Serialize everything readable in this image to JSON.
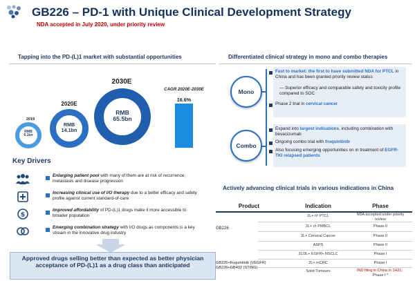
{
  "header": {
    "title": "GB226 – PD-1 with Unique Clinical Development Strategy",
    "subtitle": "NDA accepted in July 2020, under priority review"
  },
  "left": {
    "section_title": "Tapping into the PD-(L)1 market with substantial opportunities",
    "market": {
      "years": [
        "2019",
        "2020E",
        "2030E"
      ],
      "values": [
        "RMB\n6.1bn",
        "RMB\n14.1bn",
        "RMB\n65.5bn"
      ],
      "cagr_label": "CAGR 2020E-2030E",
      "cagr_value": "16.6%"
    },
    "key_drivers_title": "Key Drivers",
    "drivers": [
      {
        "bold": "Enlarging patient pool",
        "rest": " with many of them are at risk of recurrence, metastasis and disease progression"
      },
      {
        "bold": "Increasing clinical use of I/O therapy",
        "rest": " due to a better efficacy and safety profile against current standard-of-care"
      },
      {
        "bold": "Improved affordability",
        "rest": " of PD-(L)1 drugs make it more accessible to broader population"
      },
      {
        "bold": "Emerging combination strategy",
        "rest": " with I/O drugs as components is a key stream in the innovative drug industry"
      }
    ],
    "banner": "Approved drugs selling better than expected as better physician acceptance of PD-(L)1 as a drug class than anticipated"
  },
  "right": {
    "section_title": "Differentiated clinical strategy in mono and combo therapies",
    "mono_label": "Mono",
    "combo_label": "Combo",
    "mono": {
      "b1_pre": "Fast to market: the first to have submitted NDA for PTCL",
      "b1_post": " in China and has been granted priority review status",
      "b1_sub": "— Superior efficacy and comparable safety and toxicity profile compared to SOC",
      "b2_pre": "Phase 2 trial in ",
      "b2_hl": "cervical cancer"
    },
    "combo": {
      "b1_pre": "Expand into ",
      "b1_hl": "largest indications",
      "b1_post": ", including combination with bevacizumab",
      "b2_pre": "Ongoing combo trial with ",
      "b2_hl": "fruquintinib",
      "b3_pre": "Also focusing emerging opportunities on in treatment of ",
      "b3_hl": "EGFR-TKI relapsed patients"
    },
    "table_title": "Actively advancing clinical trials in various indications in China",
    "table": {
      "headers": [
        "Product",
        "Indication",
        "Phase"
      ],
      "products": [
        "GB226",
        "GB226+fruquintinib (VEGFR)\nGB226+GB492 (STING)"
      ],
      "rows": [
        {
          "indication": "2L+ r/r PTCL",
          "phase": "NDA accepted under priority review"
        },
        {
          "indication": "2L+ r/r PMBCL",
          "phase": "Phase II"
        },
        {
          "indication": "2L+ Cervical Cancer",
          "phase": "Phase II"
        },
        {
          "indication": "ASPS",
          "phase": "Phase II"
        },
        {
          "indication": "2L/3L+ EGFR+ NSCLC",
          "phase": "Phase I"
        },
        {
          "indication": "2L+ mCRC",
          "phase": "Phase I"
        },
        {
          "indication": "Solid Tumours",
          "phase": "IND filing in China in 1H21;",
          "phase2": "Phase I *"
        }
      ]
    }
  },
  "colors": {
    "navy": "#12315c",
    "accent_blue": "#2b6fc3",
    "light_blue": "#e8eef7",
    "red": "#c00000"
  },
  "icons": [
    "company-logo-icon",
    "patient-pool-icon",
    "clinical-use-icon",
    "affordability-icon",
    "combination-icon"
  ]
}
